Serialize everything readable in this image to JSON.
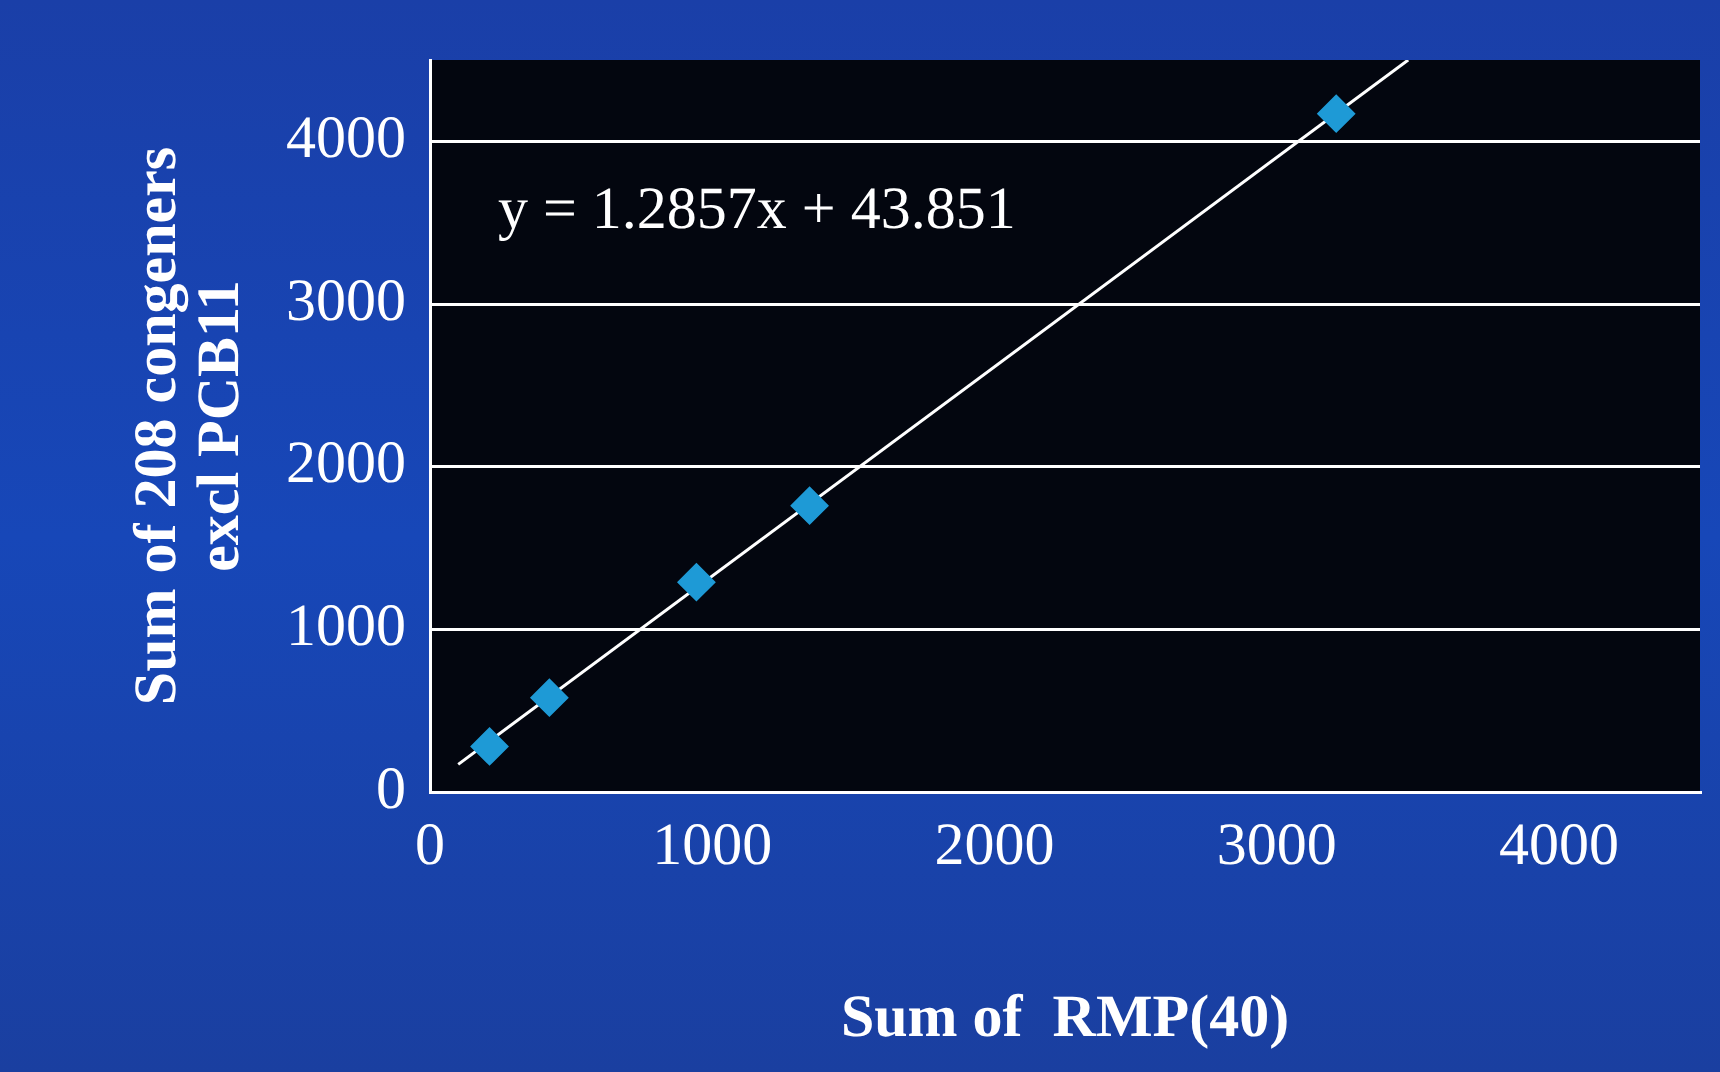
{
  "chart_data": {
    "type": "scatter",
    "xlabel": "Sum of  RMP(40)",
    "ylabel": "Sum of 208 congeners\nexcl PCB11",
    "x": [
      211,
      423,
      944,
      1345,
      3211
    ],
    "series": [
      {
        "color": "#1e9ad6",
        "values": [
          280,
          580,
          1290,
          1760,
          4170
        ],
        "marker": "diamond"
      },
      {
        "type": "line",
        "color": "#ffffff",
        "x": [
          100,
          3466
        ],
        "values": [
          170,
          4500
        ],
        "marker": "none"
      }
    ],
    "annotations": [
      "y = 1.2857x + 43.851"
    ],
    "xlim": [
      0,
      4500
    ],
    "xticks": [
      0,
      1000,
      2000,
      3000,
      4000
    ],
    "ylim": [
      0,
      4500
    ],
    "yticks": [
      0,
      1000,
      2000,
      3000,
      4000
    ],
    "grid": "y",
    "legend": false
  }
}
